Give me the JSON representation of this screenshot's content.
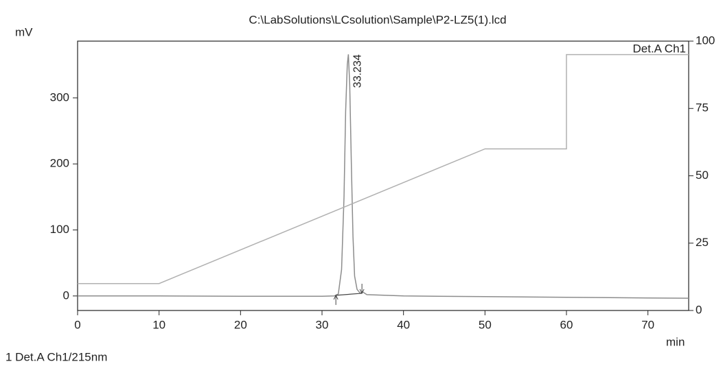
{
  "chart_data": {
    "type": "line",
    "title": "C:\\LabSolutions\\LCsolution\\Sample\\P2-LZ5(1).lcd",
    "y_label": "mV",
    "x_label": "min",
    "footnote": "1  Det.A Ch1/215nm",
    "xlim": [
      0,
      75
    ],
    "xticks": [
      0,
      10,
      20,
      30,
      40,
      50,
      60,
      70
    ],
    "ylim": [
      -22,
      386
    ],
    "yticks": [
      0,
      100,
      200,
      300
    ],
    "y2lim": [
      0,
      100
    ],
    "y2ticks": [
      0,
      25,
      50,
      75,
      100
    ],
    "series": [
      {
        "name": "Det.A Ch1",
        "color": "#8c8c8c",
        "x": [
          0,
          5,
          10,
          20,
          30,
          31.5,
          32,
          32.4,
          32.7,
          32.9,
          33.1,
          33.234,
          33.4,
          33.6,
          33.8,
          34.0,
          34.3,
          34.7,
          35,
          35.5,
          40,
          50,
          60,
          70,
          75
        ],
        "values": [
          0,
          0,
          0,
          -0.5,
          -0.5,
          0,
          3,
          40,
          150,
          280,
          350,
          366,
          320,
          200,
          90,
          30,
          10,
          4,
          6,
          2,
          0,
          -1,
          -2,
          -3,
          -3.5
        ]
      },
      {
        "color": "#b0b0b0",
        "axis": "y2",
        "x": [
          0,
          10,
          50,
          60,
          60,
          75
        ],
        "values": [
          10,
          10,
          60,
          60,
          95,
          95
        ]
      }
    ],
    "integration": {
      "x": [
        31.7,
        34.9
      ],
      "values": [
        1,
        4
      ]
    },
    "annotations": [
      {
        "label": "33.234",
        "x": 33.234,
        "y": 366
      }
    ]
  }
}
